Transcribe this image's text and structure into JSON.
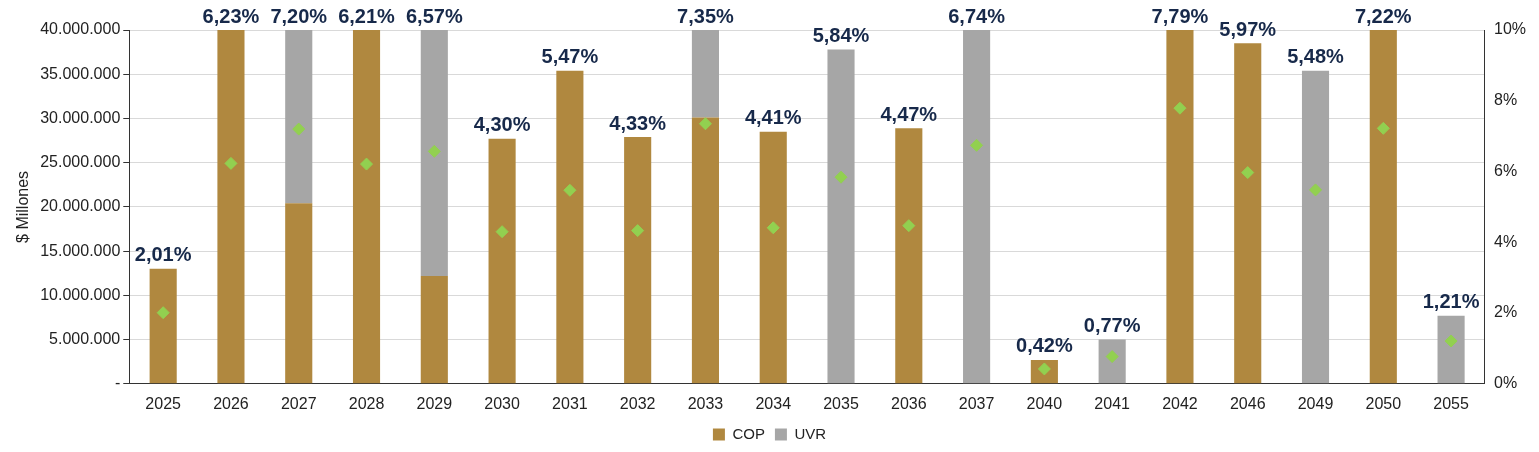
{
  "chart_data": {
    "type": "bar",
    "stacked": true,
    "ylabel": "$ Millones",
    "categories": [
      "2025",
      "2026",
      "2027",
      "2028",
      "2029",
      "2030",
      "2031",
      "2032",
      "2033",
      "2034",
      "2035",
      "2036",
      "2037",
      "2040",
      "2041",
      "2042",
      "2046",
      "2049",
      "2050",
      "2055"
    ],
    "series": [
      {
        "name": "COP",
        "color": "#b0883f",
        "values": [
          13000000,
          40000000,
          20400000,
          40000000,
          12200000,
          27700000,
          35400000,
          27900000,
          30100000,
          28500000,
          null,
          28900000,
          null,
          2700000,
          null,
          40000000,
          38500000,
          null,
          40000000,
          null
        ]
      },
      {
        "name": "UVR",
        "color": "#a6a6a6",
        "values": [
          null,
          null,
          19600000,
          null,
          27800000,
          null,
          null,
          null,
          9900000,
          null,
          37800000,
          null,
          40000000,
          null,
          5000000,
          null,
          null,
          35400000,
          null,
          7700000
        ]
      },
      {
        "type": "scatter",
        "axis": "y2",
        "marker": "diamond",
        "color": "#92d050",
        "values": [
          2.01,
          6.23,
          7.2,
          6.21,
          6.57,
          4.3,
          5.47,
          4.33,
          7.35,
          4.41,
          5.84,
          4.47,
          6.74,
          0.42,
          0.77,
          7.79,
          5.97,
          5.48,
          7.22,
          1.21
        ]
      }
    ],
    "annotations": [
      {
        "text": "2,01%",
        "x": "2025",
        "y": 13000000
      },
      {
        "text": "6,23%",
        "x": "2026",
        "y": 40000000
      },
      {
        "text": "7,20%",
        "x": "2027",
        "y": 40000000
      },
      {
        "text": "6,21%",
        "x": "2028",
        "y": 40000000
      },
      {
        "text": "6,57%",
        "x": "2029",
        "y": 40000000
      },
      {
        "text": "4,30%",
        "x": "2030",
        "y": 27700000
      },
      {
        "text": "5,47%",
        "x": "2031",
        "y": 35400000
      },
      {
        "text": "4,33%",
        "x": "2032",
        "y": 27900000
      },
      {
        "text": "7,35%",
        "x": "2033",
        "y": 40000000
      },
      {
        "text": "4,41%",
        "x": "2034",
        "y": 28500000
      },
      {
        "text": "5,84%",
        "x": "2035",
        "y": 37800000
      },
      {
        "text": "4,47%",
        "x": "2036",
        "y": 28900000
      },
      {
        "text": "6,74%",
        "x": "2037",
        "y": 40000000
      },
      {
        "text": "0,42%",
        "x": "2040",
        "y": 2700000
      },
      {
        "text": "0,77%",
        "x": "2041",
        "y": 5000000
      },
      {
        "text": "7,79%",
        "x": "2042",
        "y": 40000000
      },
      {
        "text": "5,97%",
        "x": "2046",
        "y": 38500000
      },
      {
        "text": "5,48%",
        "x": "2049",
        "y": 35400000
      },
      {
        "text": "7,22%",
        "x": "2050",
        "y": 40000000
      },
      {
        "text": "1,21%",
        "x": "2055",
        "y": 7700000
      }
    ],
    "ylim": [
      0,
      40000000
    ],
    "yticks": [
      {
        "value": 0,
        "label": "-"
      },
      {
        "value": 5000000,
        "label": "5.000.000"
      },
      {
        "value": 10000000,
        "label": "10.000.000"
      },
      {
        "value": 15000000,
        "label": "15.000.000"
      },
      {
        "value": 20000000,
        "label": "20.000.000"
      },
      {
        "value": 25000000,
        "label": "25.000.000"
      },
      {
        "value": 30000000,
        "label": "30.000.000"
      },
      {
        "value": 35000000,
        "label": "35.000.000"
      },
      {
        "value": 40000000,
        "label": "40.000.000"
      }
    ],
    "y2lim": [
      0,
      10
    ],
    "y2ticks": [
      {
        "value": 0,
        "label": "0%"
      },
      {
        "value": 2,
        "label": "2%"
      },
      {
        "value": 4,
        "label": "4%"
      },
      {
        "value": 6,
        "label": "6%"
      },
      {
        "value": 8,
        "label": "8%"
      },
      {
        "value": 10,
        "label": "10%"
      }
    ],
    "grid": "y",
    "legend": "bottom"
  }
}
